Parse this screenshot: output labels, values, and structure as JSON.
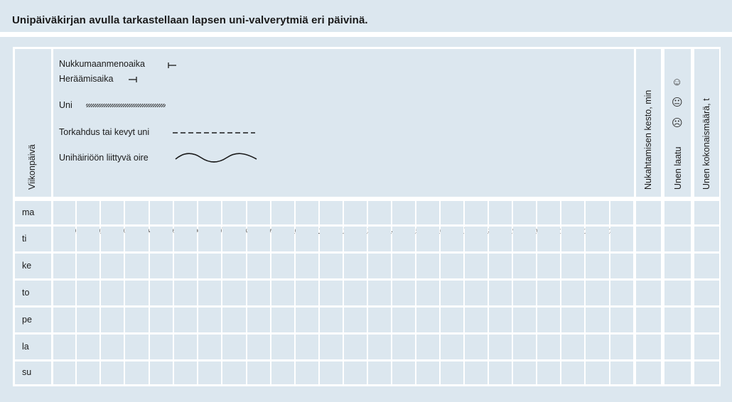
{
  "title": "Unipäiväkirjan avulla tarkastellaan lapsen uni-valverytmiä eri päivinä.",
  "columns": {
    "weekday": "Viikonpäivä",
    "latency": "Nukahtamisen kesto, min",
    "quality": "Unen laatu",
    "total": "Unen kokonaismäärä, t"
  },
  "legend": {
    "bedtime": "Nukkumaanmenoaika",
    "wake": "Heräämisaika",
    "sleep": "Uni",
    "doze": "Torkahdus tai kevyt uni",
    "symptom": "Unihäiriöön liittyvä oire"
  },
  "quality_icons": [
    "smiling-face",
    "neutral-face",
    "frowning-face"
  ],
  "hours": [
    "01",
    "02",
    "03",
    "04",
    "05",
    "06",
    "07",
    "08",
    "09",
    "10",
    "11",
    "12",
    "13",
    "14",
    "15",
    "16",
    "17",
    "18",
    "19",
    "20",
    "21",
    "22",
    "23"
  ],
  "days": [
    "ma",
    "ti",
    "ke",
    "to",
    "pe",
    "la",
    "su"
  ],
  "colors": {
    "cell": "#dce7ef",
    "grid": "#ffffff",
    "text": "#1a1a1a"
  }
}
